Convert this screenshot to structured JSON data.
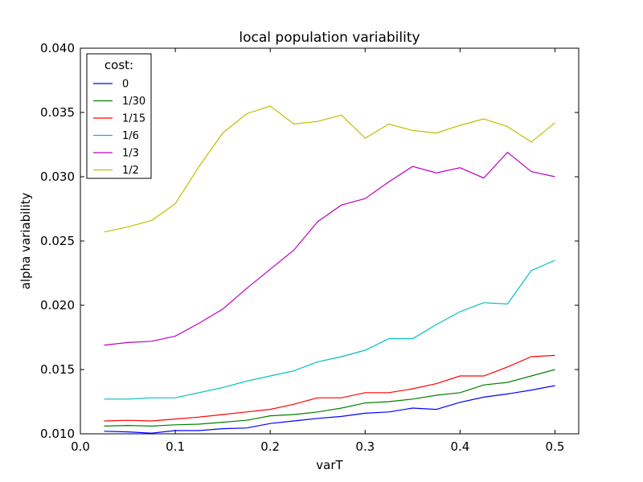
{
  "chart_data": {
    "type": "line",
    "title": "local population variability",
    "xlabel": "varT",
    "ylabel": "alpha variability",
    "xlim": [
      0.0,
      0.525
    ],
    "ylim": [
      0.01,
      0.04
    ],
    "xticks": [
      0.0,
      0.1,
      0.2,
      0.3,
      0.4,
      0.5
    ],
    "xtick_labels": [
      "0.0",
      "0.1",
      "0.2",
      "0.3",
      "0.4",
      "0.5"
    ],
    "yticks": [
      0.01,
      0.015,
      0.02,
      0.025,
      0.03,
      0.035,
      0.04
    ],
    "ytick_labels": [
      "0.010",
      "0.015",
      "0.020",
      "0.025",
      "0.030",
      "0.035",
      "0.040"
    ],
    "grid": false,
    "legend": {
      "title": "cost:",
      "placement": "top-left"
    },
    "x": [
      0.025,
      0.05,
      0.075,
      0.1,
      0.125,
      0.15,
      0.175,
      0.2,
      0.225,
      0.25,
      0.275,
      0.3,
      0.325,
      0.35,
      0.375,
      0.4,
      0.425,
      0.45,
      0.475,
      0.5
    ],
    "series": [
      {
        "name": "0",
        "color": "#0000ff",
        "values": [
          0.0102,
          0.01015,
          0.01005,
          0.01025,
          0.01025,
          0.0104,
          0.01045,
          0.0108,
          0.011,
          0.0112,
          0.01135,
          0.0116,
          0.0117,
          0.012,
          0.0119,
          0.01245,
          0.01285,
          0.0131,
          0.0134,
          0.01375
        ]
      },
      {
        "name": "1/30",
        "color": "#008000",
        "values": [
          0.0106,
          0.01065,
          0.0106,
          0.0107,
          0.01075,
          0.0109,
          0.01105,
          0.0114,
          0.0115,
          0.0117,
          0.012,
          0.0124,
          0.0125,
          0.0127,
          0.013,
          0.0132,
          0.0138,
          0.014,
          0.0145,
          0.015
        ]
      },
      {
        "name": "1/15",
        "color": "#ff0000",
        "values": [
          0.011,
          0.01105,
          0.011,
          0.01115,
          0.0113,
          0.0115,
          0.0117,
          0.0119,
          0.0123,
          0.0128,
          0.0128,
          0.0132,
          0.0132,
          0.0135,
          0.0139,
          0.0145,
          0.0145,
          0.0152,
          0.016,
          0.0161
        ]
      },
      {
        "name": "1/6",
        "color": "#00bfbf",
        "values": [
          0.0127,
          0.0127,
          0.0128,
          0.0128,
          0.0132,
          0.0136,
          0.0141,
          0.0145,
          0.0149,
          0.0156,
          0.016,
          0.0165,
          0.0174,
          0.0174,
          0.0185,
          0.0195,
          0.0202,
          0.0201,
          0.0227,
          0.0235
        ]
      },
      {
        "name": "1/3",
        "color": "#bf00bf",
        "values": [
          0.0169,
          0.0171,
          0.0172,
          0.0176,
          0.0186,
          0.0197,
          0.0213,
          0.0228,
          0.0243,
          0.0265,
          0.0278,
          0.0283,
          0.0296,
          0.0308,
          0.0303,
          0.0307,
          0.0299,
          0.0319,
          0.0304,
          0.03
        ]
      },
      {
        "name": "1/2",
        "color": "#bfbf00",
        "values": [
          0.0257,
          0.0261,
          0.0266,
          0.0279,
          0.0308,
          0.0334,
          0.0349,
          0.0355,
          0.0341,
          0.0343,
          0.0348,
          0.033,
          0.0341,
          0.0336,
          0.0334,
          0.034,
          0.0345,
          0.0339,
          0.0327,
          0.0342
        ]
      }
    ]
  }
}
